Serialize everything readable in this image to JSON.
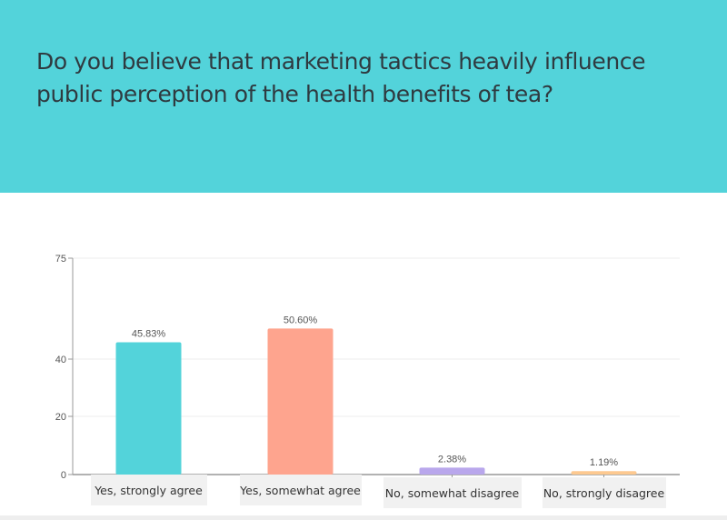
{
  "question": "Do you believe that marketing tactics heavily influence public perception of the health benefits of tea?",
  "chart_data": {
    "type": "bar",
    "categories": [
      "Yes, strongly agree",
      "Yes, somewhat agree",
      "No, somewhat disagree",
      "No, strongly disagree"
    ],
    "values": [
      45.83,
      50.6,
      2.38,
      1.19
    ],
    "value_labels": [
      "45.83%",
      "50.60%",
      "2.38%",
      "1.19%"
    ],
    "colors": [
      "#53d3da",
      "#fea48e",
      "#b9a7ec",
      "#fdc990"
    ],
    "ylim": [
      0,
      75
    ],
    "yticks": [
      0,
      20,
      40,
      75
    ],
    "title": "",
    "xlabel": "",
    "ylabel": "",
    "grid": true,
    "legend": "none"
  }
}
